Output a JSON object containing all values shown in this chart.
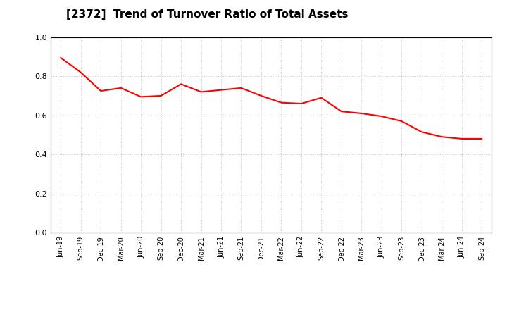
{
  "title": "[2372]  Trend of Turnover Ratio of Total Assets",
  "line_color": "#FF0000",
  "line_width": 1.5,
  "background_color": "#FFFFFF",
  "grid_color": "#999999",
  "ylim": [
    0.0,
    1.0
  ],
  "yticks": [
    0.0,
    0.2,
    0.4,
    0.6,
    0.8,
    1.0
  ],
  "x_labels": [
    "Jun-19",
    "Sep-19",
    "Dec-19",
    "Mar-20",
    "Jun-20",
    "Sep-20",
    "Dec-20",
    "Mar-21",
    "Jun-21",
    "Sep-21",
    "Dec-21",
    "Mar-22",
    "Jun-22",
    "Sep-22",
    "Dec-22",
    "Mar-23",
    "Jun-23",
    "Sep-23",
    "Dec-23",
    "Mar-24",
    "Jun-24",
    "Sep-24"
  ],
  "values": [
    0.895,
    0.82,
    0.725,
    0.74,
    0.695,
    0.7,
    0.76,
    0.72,
    0.73,
    0.74,
    0.7,
    0.665,
    0.66,
    0.69,
    0.62,
    0.61,
    0.595,
    0.57,
    0.515,
    0.49,
    0.48,
    0.48
  ],
  "title_fontsize": 11,
  "ylabel_fontsize": 8,
  "xlabel_fontsize": 7
}
